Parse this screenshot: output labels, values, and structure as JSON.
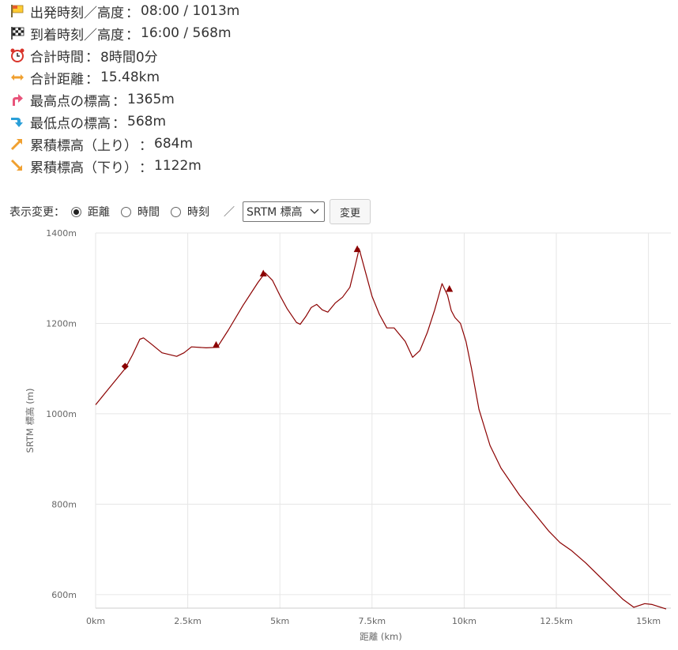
{
  "summary": [
    {
      "icon": "start-flag-icon",
      "label": "出発時刻／高度",
      "value": "08:00 / 1013m"
    },
    {
      "icon": "goal-checkered-flag-icon",
      "label": "到着時刻／高度",
      "value": "16:00 / 568m"
    },
    {
      "icon": "alarm-clock-icon",
      "label": "合計時間",
      "value": "8時間0分"
    },
    {
      "icon": "horizontal-arrow-icon",
      "label": "合計距離",
      "value": "15.48km"
    },
    {
      "icon": "up-turn-arrow-icon",
      "label": "最高点の標高",
      "value": "1365m"
    },
    {
      "icon": "down-turn-arrow-icon",
      "label": "最低点の標高",
      "value": "568m"
    },
    {
      "icon": "ascent-arrow-icon",
      "label": "累積標高（上り）",
      "value": "684m"
    },
    {
      "icon": "descent-arrow-icon",
      "label": "累積標高（下り）",
      "value": "1122m"
    }
  ],
  "separator": "：",
  "controls": {
    "label": "表示変更：",
    "options": [
      "距離",
      "時間",
      "時刻"
    ],
    "selected_index": 0,
    "slash": "／",
    "select_value": "SRTM 標高",
    "button_label": "変更"
  },
  "colors": {
    "line": "#8b0000",
    "grid": "#e6e6e6",
    "text": "#333333"
  },
  "chart_data": {
    "type": "line",
    "xlabel": "距離 (km)",
    "ylabel": "SRTM 標高 (m)",
    "xlim": [
      0,
      15.48
    ],
    "ylim": [
      570,
      1400
    ],
    "x_ticks": [
      0,
      2.5,
      5,
      7.5,
      10,
      12.5,
      15
    ],
    "x_tick_labels": [
      "0km",
      "2.5km",
      "5km",
      "7.5km",
      "10km",
      "12.5km",
      "15km"
    ],
    "y_ticks": [
      600,
      800,
      1000,
      1200,
      1400
    ],
    "y_tick_labels": [
      "600m",
      "800m",
      "1000m",
      "1200m",
      "1400m"
    ],
    "grid": true,
    "series": [
      {
        "x": [
          0,
          0.3,
          0.6,
          0.8,
          1.0,
          1.2,
          1.3,
          1.5,
          1.8,
          2.2,
          2.4,
          2.6,
          3.0,
          3.3,
          3.6,
          4.0,
          4.4,
          4.6,
          4.8,
          5.0,
          5.2,
          5.45,
          5.55,
          5.7,
          5.85,
          6.0,
          6.15,
          6.3,
          6.5,
          6.7,
          6.9,
          7.05,
          7.15,
          7.3,
          7.5,
          7.7,
          7.9,
          8.1,
          8.4,
          8.6,
          8.8,
          9.0,
          9.2,
          9.4,
          9.55,
          9.65,
          9.75,
          9.9,
          10.05,
          10.2,
          10.4,
          10.7,
          11.0,
          11.5,
          12.0,
          12.3,
          12.6,
          12.9,
          13.3,
          13.8,
          14.3,
          14.6,
          14.9,
          15.1,
          15.48
        ],
        "y": [
          1020,
          1050,
          1080,
          1100,
          1130,
          1165,
          1168,
          1155,
          1135,
          1127,
          1135,
          1148,
          1146,
          1147,
          1185,
          1240,
          1290,
          1312,
          1295,
          1262,
          1232,
          1202,
          1198,
          1215,
          1235,
          1242,
          1230,
          1225,
          1245,
          1258,
          1280,
          1330,
          1365,
          1320,
          1260,
          1220,
          1190,
          1190,
          1160,
          1125,
          1140,
          1180,
          1230,
          1288,
          1262,
          1228,
          1213,
          1200,
          1160,
          1100,
          1010,
          930,
          880,
          820,
          770,
          740,
          715,
          698,
          670,
          630,
          590,
          572,
          580,
          578,
          568
        ]
      }
    ],
    "markers": [
      {
        "shape": "diamond",
        "x": 0.8,
        "y": 1105
      },
      {
        "shape": "triangle",
        "x": 3.27,
        "y": 1152
      },
      {
        "shape": "triangle",
        "x": 4.55,
        "y": 1310
      },
      {
        "shape": "triangle",
        "x": 7.1,
        "y": 1364
      },
      {
        "shape": "triangle",
        "x": 9.6,
        "y": 1276
      }
    ]
  }
}
